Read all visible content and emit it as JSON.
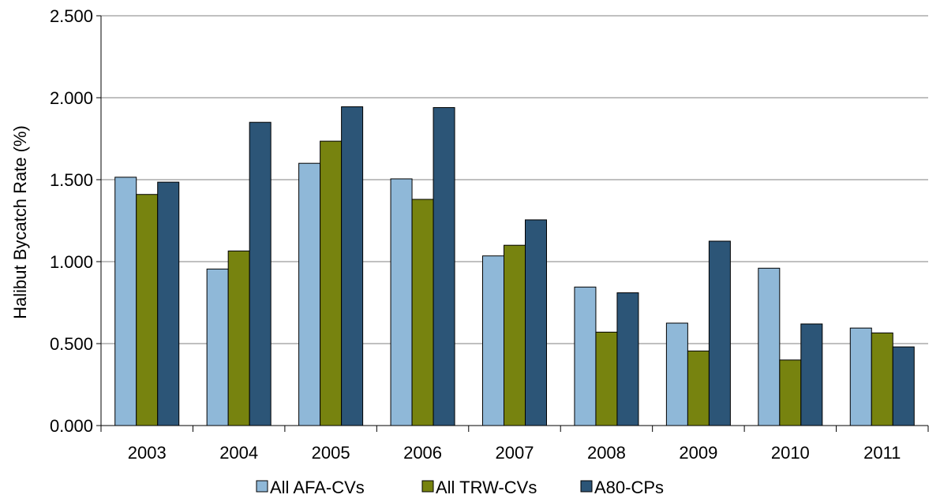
{
  "chart_data": {
    "type": "bar",
    "title": "",
    "xlabel": "",
    "ylabel": "Halibut Bycatch Rate (%)",
    "ylim": [
      0,
      2.5
    ],
    "y_ticks": [
      "0.000",
      "0.500",
      "1.000",
      "1.500",
      "2.000",
      "2.500"
    ],
    "y_tick_values": [
      0,
      0.5,
      1.0,
      1.5,
      2.0,
      2.5
    ],
    "grid": true,
    "legend_position": "bottom",
    "categories": [
      "2003",
      "2004",
      "2005",
      "2006",
      "2007",
      "2008",
      "2009",
      "2010",
      "2011"
    ],
    "series": [
      {
        "name": "All AFA-CVs",
        "color": "#8fb8d8",
        "values": [
          1.515,
          0.955,
          1.6,
          1.505,
          1.035,
          0.845,
          0.625,
          0.96,
          0.595
        ]
      },
      {
        "name": "All TRW-CVs",
        "color": "#77830f",
        "values": [
          1.41,
          1.065,
          1.735,
          1.38,
          1.1,
          0.57,
          0.455,
          0.4,
          0.565
        ]
      },
      {
        "name": "A80-CPs",
        "color": "#2c5577",
        "values": [
          1.485,
          1.85,
          1.945,
          1.94,
          1.255,
          0.81,
          1.125,
          0.62,
          0.48
        ]
      }
    ]
  }
}
